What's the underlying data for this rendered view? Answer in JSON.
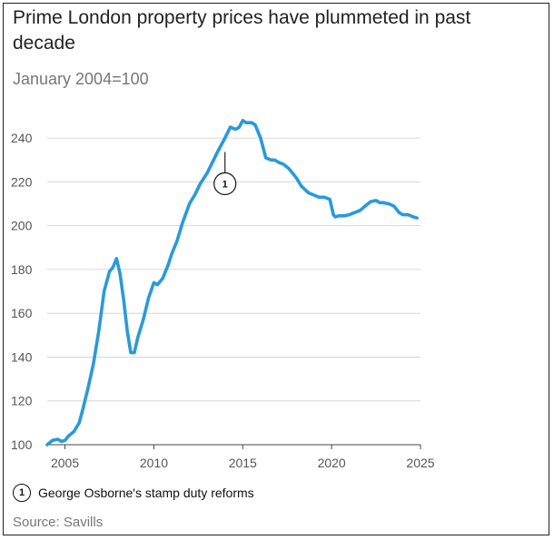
{
  "chart_data": {
    "type": "line",
    "title": "Prime London property prices have plummeted in past decade",
    "subtitle": "January 2004=100",
    "xlabel": "",
    "ylabel": "",
    "xlim": [
      2004,
      2025
    ],
    "ylim": [
      100,
      250
    ],
    "yticks": [
      100,
      120,
      140,
      160,
      180,
      200,
      220,
      240
    ],
    "ytick_labels": [
      "100",
      "120",
      "140",
      "160",
      "180",
      "200",
      "220",
      "240"
    ],
    "xticks": [
      2005,
      2010,
      2015,
      2020,
      2025
    ],
    "xtick_labels": [
      "2005",
      "2010",
      "2015",
      "2020",
      "2025"
    ],
    "grid": true,
    "line_color": "#2a9ad8",
    "series": [
      {
        "x": [
          2004.0,
          2004.3,
          2004.6,
          2004.8,
          2005.0,
          2005.2,
          2005.5,
          2005.8,
          2006.0,
          2006.3,
          2006.6,
          2006.9,
          2007.2,
          2007.5,
          2007.7,
          2007.9,
          2008.1,
          2008.3,
          2008.5,
          2008.7,
          2008.9,
          2009.1,
          2009.4,
          2009.7,
          2010.0,
          2010.2,
          2010.5,
          2010.8,
          2011.0,
          2011.3,
          2011.6,
          2012.0,
          2012.3,
          2012.6,
          2013.0,
          2013.3,
          2013.6,
          2014.0,
          2014.3,
          2014.6,
          2014.8,
          2015.0,
          2015.2,
          2015.5,
          2015.7,
          2016.0,
          2016.3,
          2016.6,
          2016.8,
          2017.0,
          2017.3,
          2017.6,
          2018.0,
          2018.3,
          2018.7,
          2019.0,
          2019.3,
          2019.6,
          2019.9,
          2020.1,
          2020.2,
          2020.4,
          2020.7,
          2021.0,
          2021.3,
          2021.6,
          2021.9,
          2022.2,
          2022.5,
          2022.7,
          2022.9,
          2023.2,
          2023.5,
          2023.8,
          2024.0,
          2024.3,
          2024.6,
          2024.8
        ],
        "values": [
          100,
          102,
          102.5,
          101.5,
          102,
          104,
          106,
          110,
          116,
          126,
          137,
          152,
          170,
          179,
          181,
          185,
          178,
          166,
          152,
          142,
          142,
          149,
          157,
          167,
          174,
          173,
          176,
          182,
          187,
          193,
          201,
          210,
          214,
          219,
          224,
          229,
          234,
          240,
          245,
          244,
          245,
          248,
          247,
          247,
          246,
          240,
          231,
          230,
          230,
          229,
          228,
          226,
          222,
          218,
          215,
          214,
          213,
          213,
          212,
          205,
          204,
          204.5,
          204.5,
          205,
          206,
          207,
          209,
          211,
          211.5,
          210.5,
          210.5,
          210,
          209,
          206,
          205,
          205,
          204,
          203.5
        ]
      }
    ],
    "annotations": [
      {
        "label": "1",
        "x": 2014.0,
        "y": 232
      }
    ]
  },
  "footnote": {
    "marker": "1",
    "text": "George Osborne's stamp duty reforms"
  },
  "source": "Source: Savills"
}
